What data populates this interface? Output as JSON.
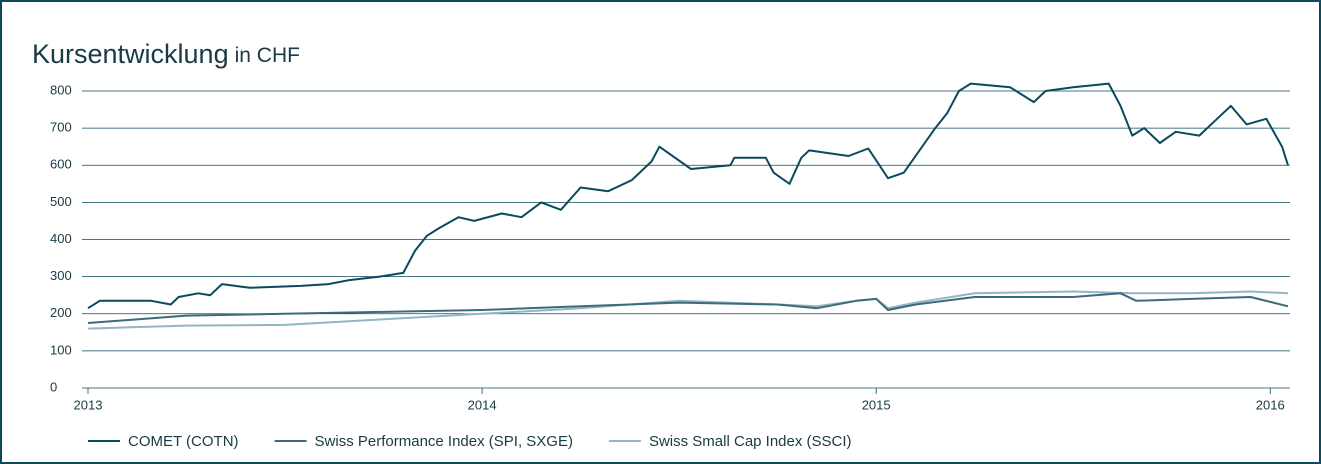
{
  "chart_data": {
    "type": "line",
    "title": "Kursentwicklung",
    "subtitle": "in CHF",
    "xlim": [
      2013,
      2016.045
    ],
    "xticks": [
      2013,
      2014,
      2015,
      2016
    ],
    "ylim": [
      0,
      800
    ],
    "yticks": [
      0,
      100,
      200,
      300,
      400,
      500,
      600,
      700,
      800
    ],
    "grid": true,
    "legend": "bottom",
    "series": [
      {
        "name": "COMET (COTN)",
        "color": "#0b4a5c",
        "x": [
          2013,
          2013.03,
          2013.16,
          2013.21,
          2013.23,
          2013.28,
          2013.31,
          2013.34,
          2013.41,
          2013.54,
          2013.61,
          2013.66,
          2013.74,
          2013.8,
          2013.83,
          2013.86,
          2013.89,
          2013.94,
          2013.98,
          2014.05,
          2014.1,
          2014.15,
          2014.2,
          2014.25,
          2014.32,
          2014.38,
          2014.43,
          2014.45,
          2014.53,
          2014.63,
          2014.64,
          2014.72,
          2014.74,
          2014.78,
          2014.81,
          2014.83,
          2014.93,
          2014.98,
          2015.03,
          2015.07,
          2015.11,
          2015.15,
          2015.18,
          2015.21,
          2015.24,
          2015.34,
          2015.4,
          2015.43,
          2015.5,
          2015.59,
          2015.62,
          2015.65,
          2015.68,
          2015.72,
          2015.76,
          2015.82,
          2015.86,
          2015.9,
          2015.94,
          2015.99,
          2016.03,
          2016.045
        ],
        "values": [
          215,
          235,
          235,
          225,
          245,
          255,
          250,
          280,
          270,
          275,
          280,
          290,
          300,
          310,
          370,
          410,
          430,
          460,
          450,
          470,
          460,
          500,
          480,
          540,
          530,
          560,
          610,
          650,
          590,
          600,
          620,
          620,
          580,
          550,
          620,
          640,
          625,
          645,
          565,
          580,
          640,
          700,
          740,
          800,
          820,
          810,
          770,
          800,
          810,
          820,
          760,
          680,
          700,
          660,
          690,
          680,
          720,
          760,
          710,
          725,
          650,
          600
        ]
      },
      {
        "name": "Swiss Performance Index (SPI, SXGE)",
        "color": "#3e6b7a",
        "x": [
          2013,
          2013.25,
          2013.5,
          2013.75,
          2014,
          2014.25,
          2014.5,
          2014.75,
          2014.85,
          2014.95,
          2015,
          2015.03,
          2015.1,
          2015.25,
          2015.5,
          2015.62,
          2015.66,
          2015.8,
          2015.95,
          2016.045
        ],
        "values": [
          175,
          195,
          200,
          205,
          210,
          220,
          230,
          225,
          215,
          235,
          240,
          210,
          225,
          245,
          245,
          255,
          235,
          240,
          245,
          220
        ]
      },
      {
        "name": "Swiss Small Cap Index (SSCI)",
        "color": "#93b6c3",
        "x": [
          2013,
          2013.25,
          2013.5,
          2013.75,
          2014,
          2014.25,
          2014.5,
          2014.75,
          2014.85,
          2014.95,
          2015,
          2015.03,
          2015.1,
          2015.25,
          2015.5,
          2015.65,
          2015.8,
          2015.95,
          2016.045
        ],
        "values": [
          160,
          168,
          170,
          185,
          200,
          215,
          235,
          225,
          220,
          235,
          240,
          215,
          230,
          255,
          260,
          255,
          255,
          260,
          255
        ]
      }
    ]
  }
}
